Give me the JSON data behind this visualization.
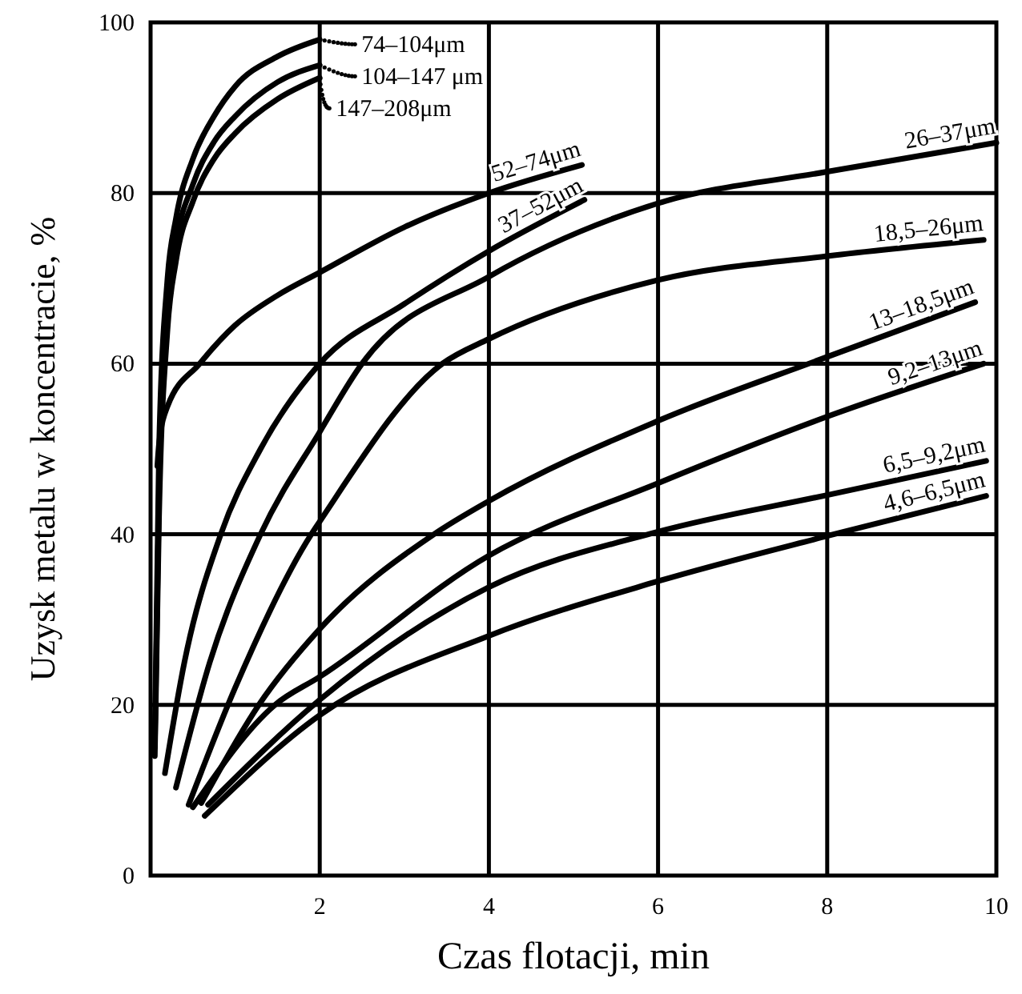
{
  "chart_data": {
    "type": "line",
    "xlabel": "Czas flotacji, min",
    "ylabel": "Uzysk metalu w koncentracie, %",
    "xlim": [
      0,
      10
    ],
    "ylim": [
      0,
      100
    ],
    "xticks": [
      2,
      4,
      6,
      8,
      10
    ],
    "yticks": [
      0,
      20,
      40,
      60,
      80,
      100
    ],
    "grid": true,
    "legend": false,
    "marker": "none",
    "line_style": "solid",
    "series": [
      {
        "name": "74–104μm",
        "color": "#000000",
        "x": [
          0.05,
          0.1,
          0.2,
          0.3,
          0.5,
          0.75,
          1,
          1.5,
          2
        ],
        "values": [
          16,
          50,
          70,
          77,
          84,
          89,
          92.5,
          96,
          98
        ]
      },
      {
        "name": "104–147 μm",
        "color": "#000000",
        "x": [
          0.05,
          0.1,
          0.2,
          0.3,
          0.5,
          0.75,
          1,
          1.5,
          2
        ],
        "values": [
          15,
          45,
          66,
          74,
          81,
          86,
          89,
          93,
          95
        ]
      },
      {
        "name": "147–208μm",
        "color": "#000000",
        "x": [
          0.05,
          0.1,
          0.2,
          0.3,
          0.5,
          0.75,
          1,
          1.5,
          2
        ],
        "values": [
          14,
          42,
          64,
          72,
          79,
          84,
          87,
          91,
          93.5
        ]
      },
      {
        "name": "52–74μm",
        "color": "#000000",
        "x": [
          0.08,
          0.1,
          0.2,
          0.58,
          1,
          1.5,
          2,
          3,
          4,
          5.1
        ],
        "values": [
          48,
          50.6,
          55,
          60,
          64.5,
          68,
          70.7,
          76,
          80,
          83.3
        ]
      },
      {
        "name": "37–52μm",
        "color": "#000000",
        "x": [
          0.17,
          0.4,
          0.83,
          1.3,
          2,
          3,
          4,
          5.13
        ],
        "values": [
          12,
          25,
          40,
          50,
          60,
          67,
          73.2,
          79.2
        ]
      },
      {
        "name": "26–37μm",
        "color": "#000000",
        "x": [
          0.3,
          0.7,
          1.3,
          2,
          2.5,
          4,
          6,
          8,
          10
        ],
        "values": [
          10.3,
          25,
          40,
          52,
          60,
          70.2,
          78.8,
          82.5,
          85.9
        ]
      },
      {
        "name": "18,5–26μm",
        "color": "#000000",
        "x": [
          0.45,
          1,
          1.9,
          2,
          3.45,
          4,
          6,
          8,
          9.85
        ],
        "values": [
          8.3,
          22,
          40,
          41.5,
          60,
          62.9,
          69.8,
          72.6,
          74.5
        ]
      },
      {
        "name": "13–18,5μm",
        "color": "#000000",
        "x": [
          0.6,
          1.28,
          2,
          3.35,
          4,
          6,
          8,
          9.75
        ],
        "values": [
          8.5,
          20,
          28.9,
          40,
          43.9,
          53.3,
          60.8,
          67.2
        ]
      },
      {
        "name": "9,2–13μm",
        "color": "#000000",
        "x": [
          0.5,
          1.47,
          2,
          4,
          6,
          8,
          9.85
        ],
        "values": [
          8,
          20,
          23.3,
          37.5,
          46,
          53.8,
          60
        ]
      },
      {
        "name": "6,5–9,2μm",
        "color": "#000000",
        "x": [
          0.68,
          2,
          4,
          6,
          8,
          9.88
        ],
        "values": [
          8.3,
          20.6,
          33.8,
          40.3,
          44.6,
          48.6
        ]
      },
      {
        "name": "4,6–6,5μm",
        "color": "#000000",
        "x": [
          0.64,
          2,
          4,
          6,
          8,
          9.88
        ],
        "values": [
          7,
          18.8,
          28.1,
          34.5,
          39.8,
          44.5
        ]
      }
    ]
  }
}
